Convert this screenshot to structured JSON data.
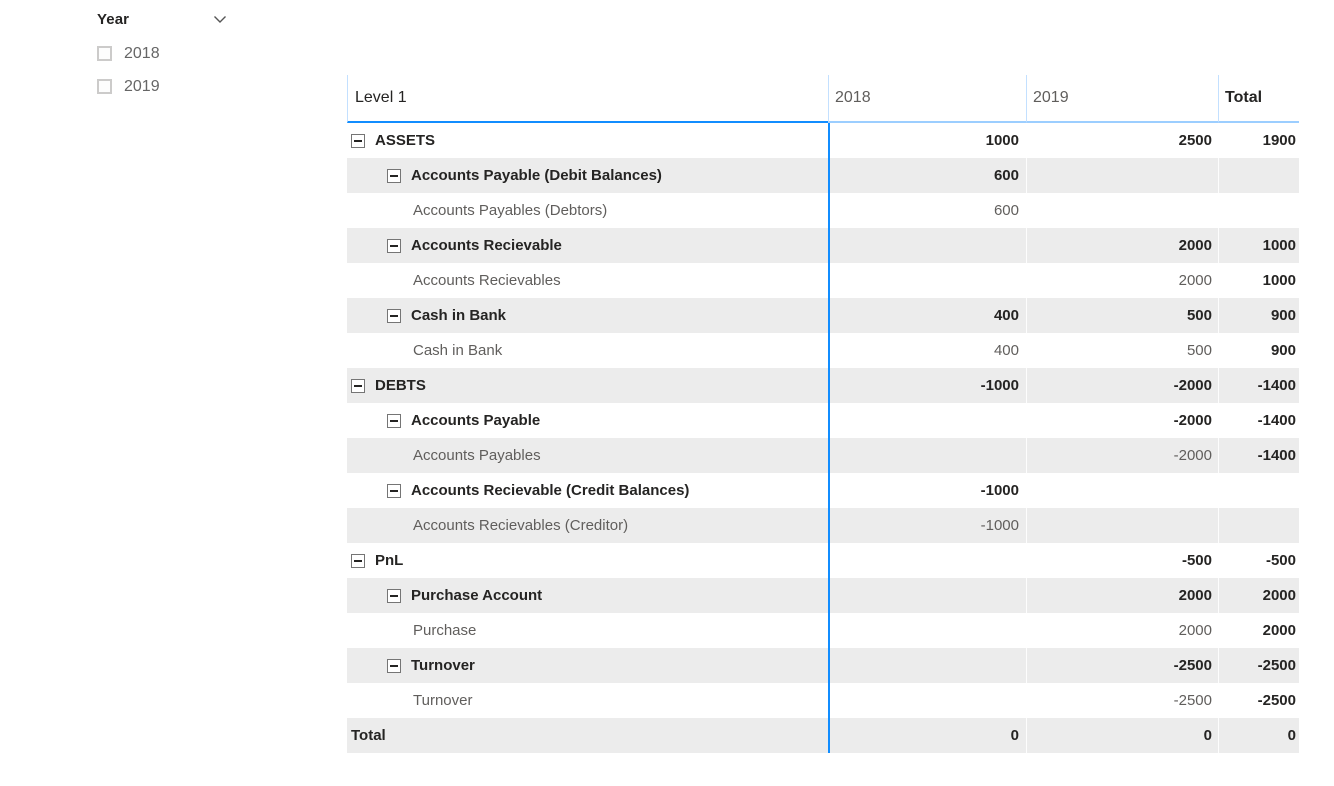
{
  "colors": {
    "accent_blue": "#118DFF",
    "header_light_blue": "#9CCEFF",
    "band_gray": "#ECECEC",
    "text_dark": "#252423",
    "text_gray": "#605E5C"
  },
  "slicer": {
    "title": "Year",
    "items": [
      {
        "label": "2018",
        "checked": false
      },
      {
        "label": "2019",
        "checked": false
      }
    ]
  },
  "matrix": {
    "columns": [
      "Level 1",
      "2018",
      "2019",
      "Total"
    ],
    "rows": [
      {
        "label": "ASSETS",
        "level": 0,
        "bold": true,
        "expandable": true,
        "is_total": false,
        "values": {
          "y2018": "1000",
          "y2019": "2500",
          "total": "1900"
        }
      },
      {
        "label": "Accounts Payable (Debit Balances)",
        "level": 1,
        "bold": true,
        "expandable": true,
        "is_total": false,
        "values": {
          "y2018": "600",
          "y2019": "",
          "total": ""
        }
      },
      {
        "label": "Accounts Payables (Debtors)",
        "level": 2,
        "bold": false,
        "expandable": false,
        "is_total": false,
        "values": {
          "y2018": "600",
          "y2019": "",
          "total": ""
        }
      },
      {
        "label": "Accounts Recievable",
        "level": 1,
        "bold": true,
        "expandable": true,
        "is_total": false,
        "values": {
          "y2018": "",
          "y2019": "2000",
          "total": "1000"
        }
      },
      {
        "label": "Accounts Recievables",
        "level": 2,
        "bold": false,
        "expandable": false,
        "is_total": false,
        "values": {
          "y2018": "",
          "y2019": "2000",
          "total": "1000"
        }
      },
      {
        "label": "Cash in Bank",
        "level": 1,
        "bold": true,
        "expandable": true,
        "is_total": false,
        "values": {
          "y2018": "400",
          "y2019": "500",
          "total": "900"
        }
      },
      {
        "label": "Cash in Bank",
        "level": 2,
        "bold": false,
        "expandable": false,
        "is_total": false,
        "values": {
          "y2018": "400",
          "y2019": "500",
          "total": "900"
        }
      },
      {
        "label": "DEBTS",
        "level": 0,
        "bold": true,
        "expandable": true,
        "is_total": false,
        "values": {
          "y2018": "-1000",
          "y2019": "-2000",
          "total": "-1400"
        }
      },
      {
        "label": "Accounts Payable",
        "level": 1,
        "bold": true,
        "expandable": true,
        "is_total": false,
        "values": {
          "y2018": "",
          "y2019": "-2000",
          "total": "-1400"
        }
      },
      {
        "label": "Accounts Payables",
        "level": 2,
        "bold": false,
        "expandable": false,
        "is_total": false,
        "values": {
          "y2018": "",
          "y2019": "-2000",
          "total": "-1400"
        }
      },
      {
        "label": "Accounts Recievable (Credit Balances)",
        "level": 1,
        "bold": true,
        "expandable": true,
        "is_total": false,
        "values": {
          "y2018": "-1000",
          "y2019": "",
          "total": ""
        }
      },
      {
        "label": "Accounts Recievables (Creditor)",
        "level": 2,
        "bold": false,
        "expandable": false,
        "is_total": false,
        "values": {
          "y2018": "-1000",
          "y2019": "",
          "total": ""
        }
      },
      {
        "label": "PnL",
        "level": 0,
        "bold": true,
        "expandable": true,
        "is_total": false,
        "values": {
          "y2018": "",
          "y2019": "-500",
          "total": "-500"
        }
      },
      {
        "label": "Purchase Account",
        "level": 1,
        "bold": true,
        "expandable": true,
        "is_total": false,
        "values": {
          "y2018": "",
          "y2019": "2000",
          "total": "2000"
        }
      },
      {
        "label": "Purchase",
        "level": 2,
        "bold": false,
        "expandable": false,
        "is_total": false,
        "values": {
          "y2018": "",
          "y2019": "2000",
          "total": "2000"
        }
      },
      {
        "label": "Turnover",
        "level": 1,
        "bold": true,
        "expandable": true,
        "is_total": false,
        "values": {
          "y2018": "",
          "y2019": "-2500",
          "total": "-2500"
        }
      },
      {
        "label": "Turnover",
        "level": 2,
        "bold": false,
        "expandable": false,
        "is_total": false,
        "values": {
          "y2018": "",
          "y2019": "-2500",
          "total": "-2500"
        }
      },
      {
        "label": "Total",
        "level": 0,
        "bold": true,
        "expandable": false,
        "is_total": true,
        "values": {
          "y2018": "0",
          "y2019": "0",
          "total": "0"
        }
      }
    ]
  }
}
